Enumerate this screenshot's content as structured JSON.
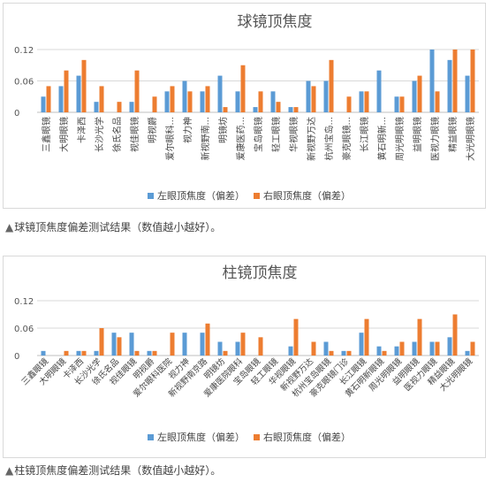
{
  "chart_data": [
    {
      "type": "bar",
      "title": "球镜顶焦度",
      "ylim": [
        0,
        0.12
      ],
      "yticks": [
        0,
        0.06,
        0.12
      ],
      "grid": true,
      "legend_placement": "bottom",
      "categories": [
        "三鑫眼镜",
        "大明眼镜",
        "卡泽西",
        "长沙光学",
        "徐氏名品",
        "视佳眼镜",
        "明视爵",
        "爱尔眼科...",
        "视力神",
        "新视野南...",
        "明镜坊",
        "爱康医药...",
        "宝岛眼镜",
        "轻工眼镜",
        "华视眼镜",
        "新视野万达",
        "杭州宝岛...",
        "豪克眼镜...",
        "长江眼镜",
        "黄石明新...",
        "周光明眼镜",
        "益明眼镜",
        "医视力眼镜",
        "精益眼镜",
        "大光明眼镜"
      ],
      "series": [
        {
          "name": "左眼顶焦度（偏差）",
          "values": [
            0.03,
            0.05,
            0.07,
            0.02,
            0.0,
            0.02,
            0.0,
            0.04,
            0.06,
            0.04,
            0.07,
            0.04,
            0.01,
            0.04,
            0.01,
            0.06,
            0.06,
            0.0,
            0.04,
            0.08,
            0.03,
            0.06,
            0.12,
            0.1,
            0.07
          ]
        },
        {
          "name": "右眼顶焦度（偏差）",
          "values": [
            0.05,
            0.08,
            0.1,
            0.05,
            0.02,
            0.08,
            0.03,
            0.05,
            0.04,
            0.05,
            0.01,
            0.09,
            0.04,
            0.02,
            0.01,
            0.05,
            0.1,
            0.03,
            0.04,
            0.0,
            0.03,
            0.07,
            0.04,
            0.12,
            0.12
          ]
        }
      ]
    },
    {
      "type": "bar",
      "title": "柱镜顶焦度",
      "ylim": [
        0,
        0.12
      ],
      "yticks": [
        0,
        0.06,
        0.12
      ],
      "grid": true,
      "legend_placement": "bottom",
      "categories": [
        "三鑫眼镜",
        "大明眼镜",
        "卡泽西",
        "长沙光学",
        "徐氏名品",
        "视佳眼镜",
        "明视爵",
        "爱尔眼科医院",
        "视力神",
        "新视野南京路",
        "明镜坊",
        "爱康医院眼科",
        "宝岛眼镜",
        "轻工眼镜",
        "华视眼镜",
        "新视野万达",
        "杭州宝岛眼镜",
        "豪克眼镜门诊",
        "长江眼镜",
        "黄石明新眼镜",
        "周光明眼镜",
        "益明眼镜",
        "医视力眼镜",
        "精益眼镜",
        "大光明眼镜"
      ],
      "series": [
        {
          "name": "左眼顶焦度（偏差）",
          "values": [
            0.01,
            0.0,
            0.01,
            0.01,
            0.05,
            0.05,
            0.01,
            0.0,
            0.05,
            0.05,
            0.03,
            0.03,
            0.0,
            0.0,
            0.02,
            0.0,
            0.03,
            0.01,
            0.05,
            0.02,
            0.02,
            0.03,
            0.03,
            0.04,
            0.01
          ]
        },
        {
          "name": "右眼顶焦度（偏差）",
          "values": [
            0.0,
            0.01,
            0.01,
            0.06,
            0.04,
            0.01,
            0.01,
            0.05,
            0.0,
            0.07,
            0.01,
            0.05,
            0.04,
            0.0,
            0.08,
            0.03,
            0.01,
            0.01,
            0.08,
            0.01,
            0.03,
            0.08,
            0.03,
            0.09,
            0.03
          ]
        }
      ]
    }
  ],
  "colors": {
    "left": "#5b9bd5",
    "right": "#ed7d31",
    "grid": "#d9d9d9",
    "axis": "#bfbfbf"
  },
  "captions": [
    {
      "marker": "▲",
      "text": "球镜顶焦度偏差测试结果（数值越小越好）。"
    },
    {
      "marker": "▲",
      "text": "柱镜顶焦度偏差测试结果（数值越小越好）。"
    }
  ]
}
